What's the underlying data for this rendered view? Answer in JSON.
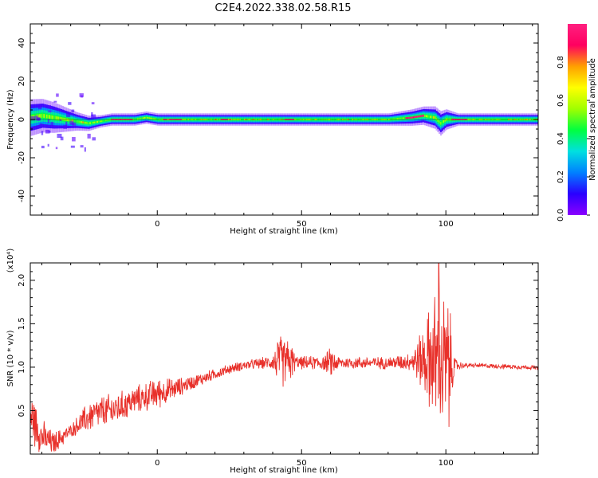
{
  "title": "C2E4.2022.338.02.58.R15",
  "colors": {
    "snr_line": "#e8302a",
    "colormap": [
      "#8b00ff",
      "#2a00ff",
      "#0080ff",
      "#00e0e0",
      "#00ff40",
      "#a0ff00",
      "#ffff00",
      "#ffa000",
      "#ff0060",
      "#ff2080"
    ]
  },
  "chart_data": [
    {
      "type": "heatmap",
      "name": "spectrogram",
      "xlabel": "Height of straight line (km)",
      "ylabel": "Frequency (Hz)",
      "xlim": [
        -44,
        132
      ],
      "ylim": [
        -50,
        50
      ],
      "xticks": [
        0,
        50,
        100
      ],
      "yticks": [
        -40,
        -20,
        0,
        20,
        40
      ],
      "colorbar": {
        "label": "Normalized spectral amplitude",
        "range": [
          0.0,
          1.0
        ],
        "ticks": [
          0.0,
          0.2,
          0.4,
          0.6,
          0.8
        ]
      },
      "band_center_hz": [
        [
          -44,
          1
        ],
        [
          -40,
          2
        ],
        [
          -36,
          1
        ],
        [
          -32,
          0
        ],
        [
          -28,
          -1
        ],
        [
          -24,
          -2
        ],
        [
          -20,
          -1
        ],
        [
          -16,
          0
        ],
        [
          -12,
          0
        ],
        [
          -8,
          0
        ],
        [
          -4,
          1
        ],
        [
          0,
          0
        ],
        [
          10,
          0
        ],
        [
          20,
          0
        ],
        [
          40,
          0
        ],
        [
          60,
          0
        ],
        [
          80,
          0
        ],
        [
          88,
          1
        ],
        [
          92,
          2
        ],
        [
          96,
          1
        ],
        [
          98,
          -2
        ],
        [
          100,
          0
        ],
        [
          104,
          0
        ],
        [
          132,
          0
        ]
      ],
      "band_halfwidth_hz": [
        [
          -44,
          6
        ],
        [
          -36,
          5
        ],
        [
          -28,
          3
        ],
        [
          -20,
          2
        ],
        [
          -10,
          2
        ],
        [
          0,
          2
        ],
        [
          40,
          2
        ],
        [
          80,
          2
        ],
        [
          92,
          3
        ],
        [
          98,
          4
        ],
        [
          104,
          2
        ],
        [
          132,
          2
        ]
      ],
      "peak_segments_km": [
        [
          -16,
          -9
        ],
        [
          2,
          8
        ],
        [
          22,
          25
        ],
        [
          44,
          47
        ],
        [
          86,
          92
        ],
        [
          102,
          107
        ]
      ]
    },
    {
      "type": "line",
      "name": "snr",
      "xlabel": "Height of straight line (km)",
      "ylabel": "SNR (10 * v/v)",
      "multiplier": "(x10⁴)",
      "xlim": [
        -44,
        132
      ],
      "ylim": [
        0,
        2.2
      ],
      "xticks": [
        0,
        50,
        100
      ],
      "yticks": [
        0.5,
        1.0,
        1.5,
        2.0
      ],
      "series": [
        {
          "trend": [
            [
              -44,
              0.45
            ],
            [
              -40,
              0.2
            ],
            [
              -36,
              0.12
            ],
            [
              -32,
              0.22
            ],
            [
              -28,
              0.32
            ],
            [
              -24,
              0.42
            ],
            [
              -20,
              0.48
            ],
            [
              -16,
              0.5
            ],
            [
              -12,
              0.55
            ],
            [
              -8,
              0.62
            ],
            [
              -4,
              0.66
            ],
            [
              0,
              0.7
            ],
            [
              5,
              0.74
            ],
            [
              10,
              0.8
            ],
            [
              15,
              0.86
            ],
            [
              20,
              0.92
            ],
            [
              25,
              0.98
            ],
            [
              30,
              1.02
            ],
            [
              35,
              1.04
            ],
            [
              40,
              1.06
            ],
            [
              45,
              1.07
            ],
            [
              50,
              1.05
            ],
            [
              60,
              1.05
            ],
            [
              70,
              1.05
            ],
            [
              80,
              1.05
            ],
            [
              85,
              1.06
            ],
            [
              90,
              1.08
            ],
            [
              95,
              1.1
            ],
            [
              100,
              1.0
            ],
            [
              103,
              1.02
            ],
            [
              110,
              1.02
            ],
            [
              120,
              1.01
            ],
            [
              128,
              1.0
            ],
            [
              132,
              0.99
            ]
          ],
          "noise_amplitude": [
            [
              -44,
              0.35
            ],
            [
              -38,
              0.18
            ],
            [
              -30,
              0.08
            ],
            [
              -24,
              0.2
            ],
            [
              -16,
              0.22
            ],
            [
              -8,
              0.18
            ],
            [
              0,
              0.2
            ],
            [
              10,
              0.1
            ],
            [
              20,
              0.07
            ],
            [
              30,
              0.06
            ],
            [
              38,
              0.08
            ],
            [
              40,
              0.1
            ],
            [
              42,
              0.35
            ],
            [
              46,
              0.3
            ],
            [
              48,
              0.08
            ],
            [
              58,
              0.1
            ],
            [
              60,
              0.2
            ],
            [
              63,
              0.08
            ],
            [
              80,
              0.08
            ],
            [
              88,
              0.12
            ],
            [
              93,
              0.5
            ],
            [
              96,
              0.9
            ],
            [
              99,
              1.0
            ],
            [
              101,
              0.9
            ],
            [
              103,
              0.1
            ],
            [
              106,
              0.03
            ],
            [
              132,
              0.03
            ]
          ],
          "max_value": 2.2,
          "max_at_km": 97.5
        }
      ]
    }
  ]
}
